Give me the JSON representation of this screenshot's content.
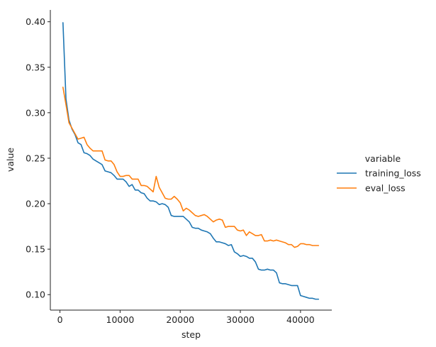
{
  "chart_data": {
    "type": "line",
    "xlabel": "step",
    "ylabel": "value",
    "xlim": [
      -1600,
      45200
    ],
    "ylim": [
      0.083,
      0.413
    ],
    "xticks": [
      0,
      10000,
      20000,
      30000,
      40000
    ],
    "yticks": [
      0.1,
      0.15,
      0.2,
      0.25,
      0.3,
      0.35,
      0.4
    ],
    "legend": {
      "title": "variable",
      "placement": "right"
    },
    "grid": false,
    "series": [
      {
        "name": "training_loss",
        "color": "#1f77b4",
        "x": [
          500,
          1000,
          1500,
          2000,
          2500,
          3000,
          3500,
          4000,
          4500,
          5000,
          5500,
          6000,
          6500,
          7000,
          7500,
          8000,
          8500,
          9000,
          9500,
          10000,
          10500,
          11000,
          11500,
          12000,
          12500,
          13000,
          13500,
          14000,
          14500,
          15000,
          15500,
          16000,
          16500,
          17000,
          17500,
          18000,
          18500,
          19000,
          19500,
          20000,
          20500,
          21000,
          21500,
          22000,
          22500,
          23000,
          23500,
          24000,
          24500,
          25000,
          25500,
          26000,
          26500,
          27000,
          27500,
          28000,
          28500,
          29000,
          29500,
          30000,
          30500,
          31000,
          31500,
          32000,
          32500,
          33000,
          33500,
          34000,
          34500,
          35000,
          35500,
          36000,
          36500,
          37000,
          37500,
          38000,
          38500,
          39000,
          39500,
          40000,
          40500,
          41000,
          41500,
          42000,
          42500,
          43000
        ],
        "values": [
          0.399,
          0.315,
          0.292,
          0.282,
          0.276,
          0.267,
          0.265,
          0.256,
          0.255,
          0.253,
          0.249,
          0.247,
          0.245,
          0.243,
          0.236,
          0.235,
          0.234,
          0.231,
          0.227,
          0.227,
          0.227,
          0.224,
          0.219,
          0.221,
          0.215,
          0.215,
          0.212,
          0.211,
          0.206,
          0.203,
          0.203,
          0.202,
          0.199,
          0.2,
          0.199,
          0.196,
          0.187,
          0.186,
          0.186,
          0.186,
          0.186,
          0.183,
          0.18,
          0.174,
          0.173,
          0.173,
          0.171,
          0.17,
          0.169,
          0.167,
          0.162,
          0.158,
          0.158,
          0.157,
          0.156,
          0.154,
          0.155,
          0.147,
          0.145,
          0.142,
          0.143,
          0.142,
          0.14,
          0.14,
          0.136,
          0.128,
          0.127,
          0.127,
          0.128,
          0.127,
          0.127,
          0.124,
          0.113,
          0.112,
          0.112,
          0.111,
          0.11,
          0.11,
          0.11,
          0.099,
          0.098,
          0.097,
          0.096,
          0.096,
          0.095,
          0.095
        ]
      },
      {
        "name": "eval_loss",
        "color": "#ff7f0e",
        "x": [
          500,
          1000,
          1500,
          2000,
          2500,
          3000,
          3500,
          4000,
          4500,
          5000,
          5500,
          6000,
          6500,
          7000,
          7500,
          8000,
          8500,
          9000,
          9500,
          10000,
          10500,
          11000,
          11500,
          12000,
          12500,
          13000,
          13500,
          14000,
          14500,
          15000,
          15500,
          16000,
          16500,
          17000,
          17500,
          18000,
          18500,
          19000,
          19500,
          20000,
          20500,
          21000,
          21500,
          22000,
          22500,
          23000,
          23500,
          24000,
          24500,
          25000,
          25500,
          26000,
          26500,
          27000,
          27500,
          28000,
          28500,
          29000,
          29500,
          30000,
          30500,
          31000,
          31500,
          32000,
          32500,
          33000,
          33500,
          34000,
          34500,
          35000,
          35500,
          36000,
          36500,
          37000,
          37500,
          38000,
          38500,
          39000,
          39500,
          40000,
          40500,
          41000,
          41500,
          42000,
          42500,
          43000
        ],
        "values": [
          0.328,
          0.309,
          0.289,
          0.283,
          0.277,
          0.271,
          0.272,
          0.273,
          0.265,
          0.261,
          0.258,
          0.258,
          0.258,
          0.258,
          0.248,
          0.247,
          0.247,
          0.243,
          0.235,
          0.23,
          0.23,
          0.231,
          0.231,
          0.227,
          0.227,
          0.227,
          0.22,
          0.22,
          0.219,
          0.216,
          0.213,
          0.23,
          0.218,
          0.212,
          0.206,
          0.205,
          0.205,
          0.208,
          0.205,
          0.201,
          0.192,
          0.195,
          0.193,
          0.19,
          0.187,
          0.186,
          0.187,
          0.188,
          0.186,
          0.183,
          0.18,
          0.182,
          0.183,
          0.182,
          0.174,
          0.175,
          0.175,
          0.175,
          0.171,
          0.17,
          0.171,
          0.165,
          0.169,
          0.167,
          0.165,
          0.165,
          0.166,
          0.159,
          0.159,
          0.16,
          0.159,
          0.16,
          0.159,
          0.158,
          0.157,
          0.155,
          0.155,
          0.152,
          0.153,
          0.156,
          0.156,
          0.155,
          0.155,
          0.154,
          0.154,
          0.154
        ]
      }
    ]
  }
}
